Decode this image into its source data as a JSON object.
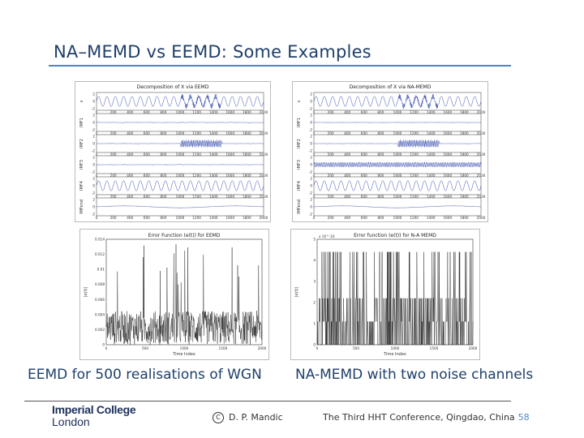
{
  "slide": {
    "title": "NA–MEMD vs EEMD: Some Examples",
    "caption_left": "EEMD for 500 realisations of WGN",
    "caption_right": "NA-MEMD with two noise channels",
    "logo_line1": "Imperial College",
    "logo_line2": "London",
    "copyright_symbol": "C",
    "author": "D. P. Mandic",
    "conference": "The Third HHT Conference, Qingdao, China",
    "page_number": "58"
  },
  "chart_data": [
    {
      "type": "line",
      "title": "Decomposition of X via EEMD",
      "xlabel": "",
      "xlim": [
        0,
        2000
      ],
      "x_ticks": [
        "0",
        "200",
        "400",
        "600",
        "800",
        "1000",
        "1200",
        "1400",
        "1600",
        "1800",
        "2000"
      ],
      "rows": [
        {
          "name": "x",
          "ylim": [
            -2,
            2
          ],
          "y_ticks": [
            "2",
            "0",
            "-2"
          ]
        },
        {
          "name": "IMF1",
          "ylim": [
            -2,
            2
          ],
          "y_ticks": [
            "2",
            "0",
            "-2"
          ]
        },
        {
          "name": "IMF2",
          "ylim": [
            -2,
            2
          ],
          "y_ticks": [
            "2",
            "0",
            "-2"
          ]
        },
        {
          "name": "IMF3",
          "ylim": [
            -2,
            2
          ],
          "y_ticks": [
            "2",
            "0",
            "-2"
          ]
        },
        {
          "name": "IMF4",
          "ylim": [
            -2,
            2
          ],
          "y_ticks": [
            "2",
            "0",
            "-2"
          ]
        },
        {
          "name": "IMFend",
          "ylim": [
            -2,
            2
          ],
          "y_ticks": [
            "2",
            "0",
            "-2"
          ]
        }
      ]
    },
    {
      "type": "line",
      "title": "Decomposition of X via NA-MEMD",
      "xlabel": "",
      "xlim": [
        0,
        2000
      ],
      "x_ticks": [
        "0",
        "200",
        "400",
        "600",
        "800",
        "1000",
        "1200",
        "1400",
        "1600",
        "1800",
        "2000"
      ],
      "rows": [
        {
          "name": "x",
          "ylim": [
            -2,
            2
          ],
          "y_ticks": [
            "2",
            "0",
            "-2"
          ]
        },
        {
          "name": "IMF1",
          "ylim": [
            -2,
            2
          ],
          "y_ticks": [
            "2",
            "0",
            "-2"
          ]
        },
        {
          "name": "IMF2",
          "ylim": [
            -2,
            2
          ],
          "y_ticks": [
            "2",
            "0",
            "-2"
          ]
        },
        {
          "name": "IMF3",
          "ylim": [
            -2,
            2
          ],
          "y_ticks": [
            "2",
            "0",
            "-2"
          ]
        },
        {
          "name": "IMF4",
          "ylim": [
            -2,
            2
          ],
          "y_ticks": [
            "2",
            "0",
            "-2"
          ]
        },
        {
          "name": "IMFend",
          "ylim": [
            -2,
            2
          ],
          "y_ticks": [
            "2",
            "0",
            "-2"
          ]
        }
      ]
    },
    {
      "type": "line",
      "title": "Error Function (e(t)) for EEMD",
      "xlabel": "Time Index",
      "ylabel": "|e(t)|",
      "xlim": [
        0,
        2000
      ],
      "ylim": [
        0,
        0.014
      ],
      "x_ticks": [
        "0",
        "500",
        "1000",
        "1500",
        "2000"
      ],
      "y_ticks": [
        "0.014",
        "0.012",
        "0.01",
        "0.008",
        "0.006",
        "0.004",
        "0.002",
        "0"
      ]
    },
    {
      "type": "line",
      "title": "Error function (e(t)) for N-A MEMD",
      "xlabel": "Time Index",
      "ylabel": "|e(t)|",
      "y_scale_note": "x 10^-16",
      "xlim": [
        0,
        2000
      ],
      "ylim": [
        0,
        5
      ],
      "x_ticks": [
        "0",
        "500",
        "1000",
        "1500",
        "2000"
      ],
      "y_ticks": [
        "5",
        "4",
        "3",
        "2",
        "1",
        "0"
      ]
    }
  ]
}
